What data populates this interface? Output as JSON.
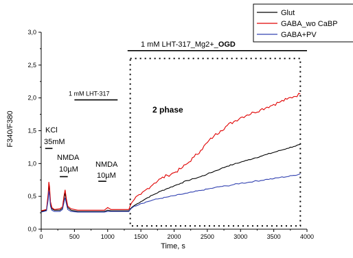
{
  "chart_data": {
    "type": "line",
    "title": "",
    "xlabel": "Time, s",
    "ylabel": "F340/F380",
    "xlim": [
      0,
      4000
    ],
    "ylim": [
      0.0,
      3.0
    ],
    "x_ticks": [
      "0",
      "500",
      "1000",
      "1500",
      "2000",
      "2500",
      "3000",
      "3500",
      "4000"
    ],
    "y_ticks": [
      "0,0",
      "0,5",
      "1,0",
      "1,5",
      "2,0",
      "2,5",
      "3,0"
    ],
    "grid": false,
    "legend_position": "top-right",
    "series": [
      {
        "name": "Glut",
        "color": "#000000",
        "x": [
          0,
          80,
          105,
          115,
          125,
          140,
          160,
          200,
          280,
          320,
          345,
          360,
          380,
          400,
          450,
          550,
          700,
          850,
          950,
          1000,
          1050,
          1150,
          1250,
          1320,
          1340,
          1360,
          1400,
          1500,
          1600,
          1700,
          1800,
          1900,
          2000,
          2100,
          2200,
          2300,
          2400,
          2500,
          2600,
          2700,
          2800,
          2900,
          3000,
          3100,
          3200,
          3300,
          3400,
          3500,
          3600,
          3700,
          3800,
          3900
        ],
        "y": [
          0.27,
          0.29,
          0.5,
          0.66,
          0.6,
          0.38,
          0.31,
          0.29,
          0.29,
          0.32,
          0.48,
          0.55,
          0.42,
          0.33,
          0.29,
          0.27,
          0.27,
          0.27,
          0.27,
          0.29,
          0.28,
          0.28,
          0.28,
          0.28,
          0.3,
          0.33,
          0.36,
          0.42,
          0.48,
          0.53,
          0.58,
          0.62,
          0.66,
          0.7,
          0.74,
          0.77,
          0.8,
          0.84,
          0.88,
          0.92,
          0.96,
          0.99,
          1.02,
          1.05,
          1.08,
          1.11,
          1.14,
          1.17,
          1.2,
          1.23,
          1.26,
          1.29
        ]
      },
      {
        "name": "GABA_wo CaBP",
        "color": "#e00000",
        "x": [
          0,
          80,
          105,
          115,
          125,
          140,
          160,
          200,
          280,
          320,
          345,
          360,
          380,
          400,
          450,
          550,
          700,
          850,
          950,
          1000,
          1050,
          1150,
          1250,
          1320,
          1340,
          1360,
          1400,
          1500,
          1600,
          1700,
          1800,
          1900,
          2000,
          2100,
          2200,
          2300,
          2400,
          2500,
          2600,
          2700,
          2800,
          2900,
          3000,
          3100,
          3200,
          3300,
          3400,
          3500,
          3600,
          3700,
          3800,
          3900
        ],
        "y": [
          0.28,
          0.3,
          0.55,
          0.72,
          0.65,
          0.42,
          0.33,
          0.3,
          0.31,
          0.34,
          0.52,
          0.6,
          0.45,
          0.35,
          0.31,
          0.29,
          0.29,
          0.29,
          0.29,
          0.33,
          0.3,
          0.3,
          0.3,
          0.3,
          0.36,
          0.4,
          0.45,
          0.53,
          0.62,
          0.7,
          0.77,
          0.82,
          0.86,
          0.92,
          1.0,
          1.1,
          1.2,
          1.32,
          1.42,
          1.5,
          1.58,
          1.64,
          1.7,
          1.74,
          1.78,
          1.82,
          1.86,
          1.9,
          1.94,
          1.98,
          2.02,
          2.06
        ]
      },
      {
        "name": "GABA+PV",
        "color": "#3040b0",
        "x": [
          0,
          80,
          105,
          115,
          125,
          140,
          160,
          200,
          280,
          320,
          345,
          360,
          380,
          400,
          450,
          550,
          700,
          850,
          950,
          1000,
          1050,
          1150,
          1250,
          1320,
          1340,
          1360,
          1400,
          1500,
          1600,
          1700,
          1800,
          1900,
          2000,
          2100,
          2200,
          2300,
          2400,
          2500,
          2600,
          2700,
          2800,
          2900,
          3000,
          3100,
          3200,
          3300,
          3400,
          3500,
          3600,
          3700,
          3800,
          3900
        ],
        "y": [
          0.26,
          0.28,
          0.45,
          0.58,
          0.52,
          0.35,
          0.29,
          0.27,
          0.27,
          0.3,
          0.42,
          0.48,
          0.38,
          0.3,
          0.27,
          0.26,
          0.26,
          0.26,
          0.26,
          0.27,
          0.27,
          0.27,
          0.27,
          0.27,
          0.3,
          0.32,
          0.35,
          0.39,
          0.42,
          0.45,
          0.47,
          0.49,
          0.51,
          0.53,
          0.55,
          0.57,
          0.59,
          0.61,
          0.63,
          0.65,
          0.66,
          0.68,
          0.7,
          0.71,
          0.73,
          0.74,
          0.76,
          0.77,
          0.79,
          0.8,
          0.82,
          0.84
        ]
      }
    ],
    "annotations": [
      {
        "id": "lht-ogd",
        "text": "1 mM LHT-317_Mg2+_",
        "bold_text": "OGD",
        "x1": 1300,
        "x2": 4000,
        "y": 2.72
      },
      {
        "id": "lht",
        "text": "1 mM LHT-317",
        "x1": 500,
        "x2": 1150,
        "y": 1.97
      },
      {
        "id": "kcl",
        "text": "KCl",
        "text2": "35mM",
        "x1": 60,
        "x2": 170,
        "y": 1.23
      },
      {
        "id": "nmda1",
        "text": "NMDA",
        "text2": "10µM",
        "x1": 280,
        "x2": 400,
        "y": 0.8
      },
      {
        "id": "nmda2",
        "text": "NMDA",
        "text2": "10µM",
        "x1": 860,
        "x2": 980,
        "y": 0.73
      },
      {
        "id": "phase",
        "text": "2 phase"
      }
    ],
    "ogd_box": {
      "x1": 1340,
      "x2": 3900,
      "y1": 0.05,
      "y2": 2.6
    }
  }
}
